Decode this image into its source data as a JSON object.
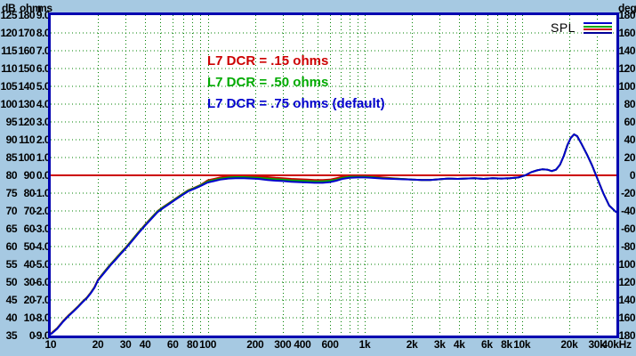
{
  "window": {
    "name": "SPL measurement plot"
  },
  "spl_label": "SPL",
  "legend_icon": {
    "colors": [
      "#0000CC",
      "#00AA00",
      "#CC0000",
      "#000099"
    ]
  },
  "axes": {
    "left_headers": {
      "db": "dB",
      "ohm": "ohm",
      "ms": "ms"
    },
    "right_header": "deg",
    "db_labels": [
      "125",
      "120",
      "115",
      "110",
      "105",
      "100",
      "95",
      "90",
      "85",
      "80",
      "75",
      "70",
      "65",
      "60",
      "55",
      "50",
      "45",
      "40",
      "35"
    ],
    "ohm_labels": [
      "180",
      "170",
      "160",
      "150",
      "140",
      "130",
      "120",
      "110",
      "100",
      "90",
      "80",
      "70",
      "60",
      "50",
      "40",
      "30",
      "20",
      "10",
      "0"
    ],
    "ms_labels": [
      "9.0",
      "8.0",
      "7.0",
      "6.0",
      "5.0",
      "4.0",
      "3.0",
      "2.0",
      "1.0",
      "0.0",
      "-1.0",
      "-2.0",
      "-3.0",
      "-4.0",
      "-5.0",
      "-6.0",
      "-7.0",
      "-8.0",
      "-9.0"
    ],
    "deg_labels": [
      "180",
      "160",
      "140",
      "120",
      "100",
      "80",
      "60",
      "40",
      "20",
      "0",
      "-20",
      "-40",
      "-60",
      "-80",
      "-100",
      "-120",
      "-140",
      "-160",
      "-180"
    ],
    "x_ticks": [
      {
        "f": 10,
        "label": "10"
      },
      {
        "f": 20,
        "label": "20"
      },
      {
        "f": 30,
        "label": "30"
      },
      {
        "f": 40,
        "label": "40"
      },
      {
        "f": 60,
        "label": "60"
      },
      {
        "f": 80,
        "label": "80"
      },
      {
        "f": 100,
        "label": "100"
      },
      {
        "f": 200,
        "label": "200"
      },
      {
        "f": 300,
        "label": "300"
      },
      {
        "f": 400,
        "label": "400"
      },
      {
        "f": 600,
        "label": "600"
      },
      {
        "f": 1000,
        "label": "1k"
      },
      {
        "f": 2000,
        "label": "2k"
      },
      {
        "f": 3000,
        "label": "3k"
      },
      {
        "f": 4000,
        "label": "4k"
      },
      {
        "f": 6000,
        "label": "6k"
      },
      {
        "f": 8000,
        "label": "8k"
      },
      {
        "f": 10000,
        "label": "10k"
      },
      {
        "f": 20000,
        "label": "20k"
      },
      {
        "f": 30000,
        "label": "30k"
      },
      {
        "f": 40000,
        "label": "40kHz"
      }
    ],
    "minor_grid_hz": [
      20,
      30,
      40,
      50,
      60,
      70,
      80,
      90,
      100,
      200,
      300,
      400,
      500,
      600,
      700,
      800,
      900,
      1000,
      2000,
      3000,
      4000,
      5000,
      6000,
      7000,
      8000,
      9000,
      10000,
      20000,
      30000
    ]
  },
  "colors": {
    "background": "#A6C9E2",
    "plot_background": "#FFFFFF",
    "plot_border": "#0000B0",
    "grid": "#008000",
    "reference_line": "#CC0000",
    "text": "#000000"
  },
  "chart_data": {
    "type": "line",
    "title": "SPL",
    "x_scale": "log",
    "x_range_hz": [
      10,
      40000
    ],
    "y_axis_db_range": [
      35,
      125
    ],
    "y_axis_ohm_range": [
      0,
      180
    ],
    "y_axis_ms_range": [
      -9.0,
      9.0
    ],
    "y_axis_deg_range": [
      -180,
      180
    ],
    "reference_line_db": 80,
    "grid": true,
    "legend_position": "top-left-inside",
    "x_hz": [
      10,
      11,
      12,
      13,
      14,
      15,
      16,
      17,
      18,
      19,
      20,
      22,
      24,
      26,
      28,
      30,
      33,
      36,
      40,
      44,
      48,
      52,
      57,
      62,
      68,
      75,
      82,
      90,
      100,
      110,
      120,
      135,
      150,
      170,
      190,
      210,
      240,
      270,
      300,
      340,
      380,
      430,
      480,
      540,
      600,
      660,
      720,
      800,
      900,
      1000,
      1100,
      1300,
      1500,
      1700,
      2000,
      2300,
      2600,
      3000,
      3400,
      3900,
      4400,
      5000,
      5700,
      6500,
      7400,
      8400,
      9500,
      10500,
      11500,
      12500,
      13500,
      14500,
      15500,
      16500,
      17500,
      18500,
      19500,
      20500,
      21500,
      22500,
      24000,
      26000,
      28000,
      30000,
      33000,
      36000,
      40000
    ],
    "series": [
      {
        "name": "L7 DCR = .15 ohms",
        "color": "#CC0000",
        "values_db": [
          35.5,
          37.1,
          39.1,
          40.7,
          42.0,
          43.3,
          44.6,
          45.7,
          47.1,
          48.6,
          50.7,
          53.0,
          55.0,
          56.7,
          58.3,
          59.7,
          61.9,
          63.9,
          66.2,
          68.2,
          70.0,
          71.1,
          72.3,
          73.4,
          74.6,
          75.8,
          76.5,
          77.3,
          78.6,
          79.0,
          79.4,
          79.7,
          79.8,
          79.8,
          79.7,
          79.6,
          79.5,
          79.3,
          79.2,
          79.0,
          78.9,
          78.8,
          78.7,
          78.7,
          78.8,
          79.2,
          79.6,
          79.8,
          79.9,
          79.8,
          79.7,
          79.4,
          79.2,
          79.0,
          78.8,
          78.7,
          78.7,
          78.9,
          79.1,
          79.0,
          79.1,
          79.2,
          79.0,
          79.2,
          79.1,
          79.2,
          79.4,
          80.0,
          80.9,
          81.4,
          81.7,
          81.6,
          81.2,
          81.6,
          83.0,
          85.5,
          88.5,
          90.5,
          91.5,
          91.0,
          88.8,
          85.8,
          82.8,
          79.5,
          75.0,
          71.5,
          69.6
        ]
      },
      {
        "name": "L7 DCR = .50 ohms",
        "color": "#00AA00",
        "values_db": [
          35.4,
          37.0,
          39.0,
          40.6,
          41.9,
          43.2,
          44.5,
          45.6,
          47.0,
          48.5,
          50.6,
          52.9,
          54.9,
          56.6,
          58.2,
          59.6,
          61.8,
          63.8,
          66.1,
          68.1,
          69.9,
          71.0,
          72.2,
          73.3,
          74.5,
          75.7,
          76.4,
          77.2,
          78.3,
          78.7,
          79.1,
          79.4,
          79.5,
          79.5,
          79.4,
          79.3,
          79.1,
          78.9,
          78.8,
          78.6,
          78.5,
          78.4,
          78.3,
          78.3,
          78.5,
          78.8,
          79.3,
          79.6,
          79.6,
          79.6,
          79.5,
          79.2,
          79.1,
          79.0,
          78.8,
          78.7,
          78.7,
          78.9,
          79.1,
          79.0,
          79.1,
          79.2,
          79.0,
          79.2,
          79.1,
          79.2,
          79.4,
          80.0,
          80.9,
          81.4,
          81.7,
          81.6,
          81.2,
          81.6,
          83.0,
          85.5,
          88.5,
          90.5,
          91.5,
          91.0,
          88.8,
          85.8,
          82.8,
          79.5,
          75.0,
          71.5,
          69.6
        ]
      },
      {
        "name": "L7 DCR = .75 ohms (default)",
        "color": "#0000CC",
        "values_db": [
          35.3,
          36.9,
          38.9,
          40.5,
          41.8,
          43.1,
          44.4,
          45.5,
          46.9,
          48.4,
          50.5,
          52.7,
          54.7,
          56.4,
          58.0,
          59.4,
          61.6,
          63.6,
          65.9,
          67.9,
          69.7,
          70.8,
          72.0,
          73.1,
          74.3,
          75.5,
          76.2,
          77.0,
          78.0,
          78.4,
          78.8,
          79.1,
          79.2,
          79.2,
          79.1,
          79.0,
          78.7,
          78.5,
          78.4,
          78.2,
          78.1,
          78.0,
          77.9,
          77.9,
          78.1,
          78.5,
          79.0,
          79.3,
          79.4,
          79.4,
          79.3,
          79.1,
          79.0,
          78.9,
          78.8,
          78.7,
          78.7,
          78.9,
          79.1,
          79.0,
          79.1,
          79.2,
          79.0,
          79.2,
          79.1,
          79.2,
          79.4,
          80.0,
          80.9,
          81.4,
          81.7,
          81.6,
          81.2,
          81.6,
          83.0,
          85.5,
          88.5,
          90.5,
          91.5,
          91.0,
          88.8,
          85.8,
          82.8,
          79.5,
          75.0,
          71.5,
          69.6
        ]
      }
    ]
  }
}
